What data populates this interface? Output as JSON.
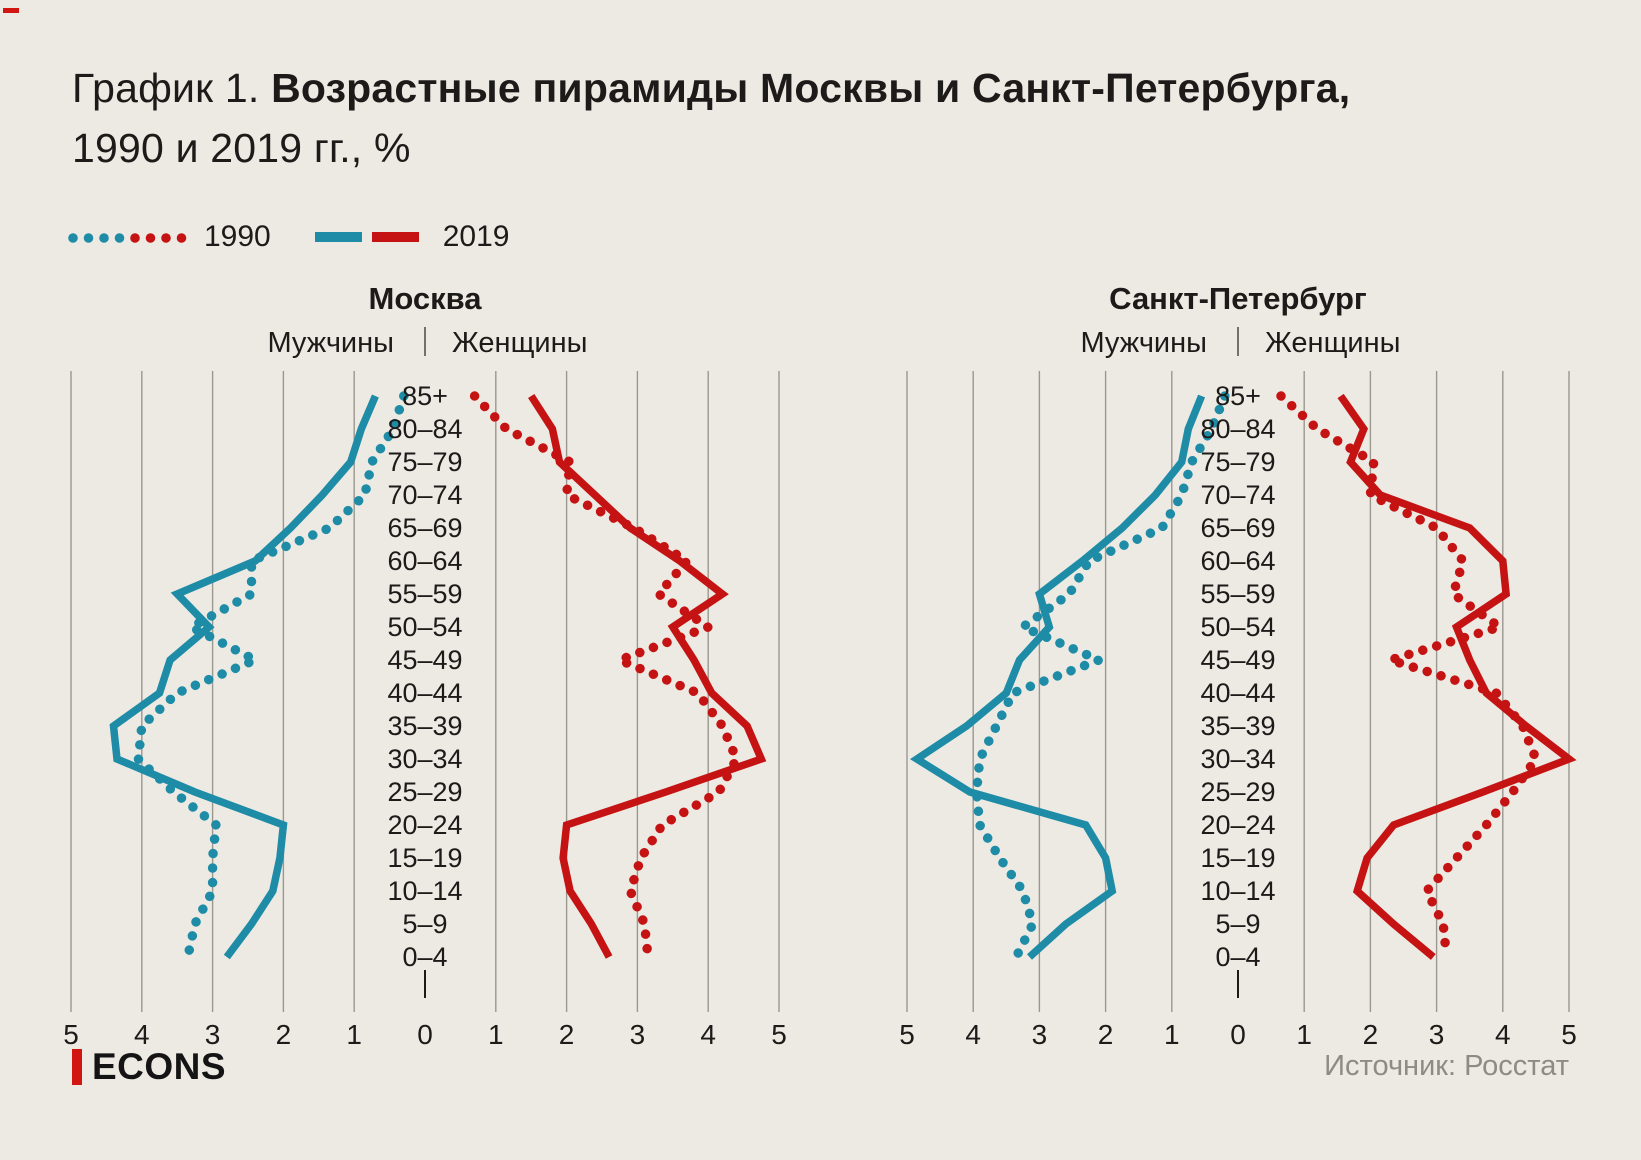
{
  "page": {
    "title_prefix": "График 1. ",
    "title_bold": "Возрастные пирамиды Москвы и Санкт-Петербурга,",
    "title_line2": "1990 и 2019 гг., %",
    "logo_text": "ECONS",
    "source": "Источник: Росстат"
  },
  "legend": {
    "dotted_label": "1990",
    "solid_label": "2019"
  },
  "colors": {
    "bg": "#edeae3",
    "text": "#1c1b19",
    "muted": "#8e8b83",
    "male": "#1e8ca6",
    "female": "#c51313",
    "grid": "#9a978f",
    "logo": "#d11510"
  },
  "chart_data": [
    {
      "type": "line",
      "id": "moscow",
      "title": "Москва",
      "left_header": "Мужчины",
      "right_header": "Женщины",
      "orientation": "population-pyramid",
      "xlim_each_side": [
        0,
        5
      ],
      "x_ticks_left": [
        5,
        4,
        3,
        2,
        1
      ],
      "x_tick_zero": 0,
      "x_ticks_right": [
        1,
        2,
        3,
        4,
        5
      ],
      "grid": true,
      "age_groups": [
        "85+",
        "80–84",
        "75–79",
        "70–74",
        "65–69",
        "60–64",
        "55–59",
        "50–54",
        "45–49",
        "40–44",
        "35–39",
        "30–34",
        "25–29",
        "20–24",
        "15–19",
        "10–14",
        "5–9",
        "0–4"
      ],
      "series": [
        {
          "name": "Мужчины 1990",
          "sex": "male",
          "year": "1990",
          "style": "dotted",
          "values": [
            0.3,
            0.45,
            0.75,
            0.85,
            1.35,
            2.45,
            2.45,
            3.3,
            2.4,
            3.5,
            4.0,
            4.05,
            3.55,
            2.95,
            3.0,
            3.0,
            3.25,
            3.35
          ]
        },
        {
          "name": "Мужчины 2019",
          "sex": "male",
          "year": "2019",
          "style": "solid",
          "values": [
            0.7,
            0.9,
            1.05,
            1.45,
            1.9,
            2.4,
            3.5,
            3.05,
            3.6,
            3.75,
            4.4,
            4.35,
            3.25,
            2.0,
            2.05,
            2.15,
            2.45,
            2.8
          ]
        },
        {
          "name": "Женщины 1990",
          "sex": "female",
          "year": "1990",
          "style": "dotted",
          "values": [
            0.7,
            1.15,
            2.05,
            2.0,
            2.95,
            3.7,
            3.3,
            4.0,
            2.75,
            3.85,
            4.2,
            4.4,
            4.15,
            3.35,
            3.05,
            2.9,
            3.1,
            3.15
          ]
        },
        {
          "name": "Женщины 2019",
          "sex": "female",
          "year": "2019",
          "style": "solid",
          "values": [
            1.5,
            1.8,
            1.9,
            2.4,
            2.9,
            3.6,
            4.2,
            3.5,
            3.8,
            4.05,
            4.55,
            4.75,
            3.4,
            2.0,
            1.95,
            2.05,
            2.35,
            2.6
          ]
        }
      ]
    },
    {
      "type": "line",
      "id": "spb",
      "title": "Санкт-Петербург",
      "left_header": "Мужчины",
      "right_header": "Женщины",
      "orientation": "population-pyramid",
      "xlim_each_side": [
        0,
        5
      ],
      "x_ticks_left": [
        5,
        4,
        3,
        2,
        1
      ],
      "x_tick_zero": 0,
      "x_ticks_right": [
        1,
        2,
        3,
        4,
        5
      ],
      "grid": true,
      "age_groups": [
        "85+",
        "80–84",
        "75–79",
        "70–74",
        "65–69",
        "60–64",
        "55–59",
        "50–54",
        "45–49",
        "40–44",
        "35–39",
        "30–34",
        "25–29",
        "20–24",
        "15–19",
        "10–14",
        "5–9",
        "0–4"
      ],
      "series": [
        {
          "name": "Мужчины 1990",
          "sex": "male",
          "year": "1990",
          "style": "dotted",
          "values": [
            0.2,
            0.4,
            0.7,
            0.85,
            1.15,
            2.25,
            2.55,
            3.25,
            2.1,
            3.4,
            3.65,
            3.9,
            3.95,
            3.9,
            3.6,
            3.25,
            3.1,
            3.35
          ]
        },
        {
          "name": "Мужчины 2019",
          "sex": "male",
          "year": "2019",
          "style": "solid",
          "values": [
            0.55,
            0.75,
            0.85,
            1.25,
            1.75,
            2.35,
            3.0,
            2.85,
            3.3,
            3.5,
            4.1,
            4.85,
            4.05,
            2.3,
            2.0,
            1.9,
            2.6,
            3.15
          ]
        },
        {
          "name": "Женщины 1990",
          "sex": "female",
          "year": "1990",
          "style": "dotted",
          "values": [
            0.65,
            1.2,
            2.05,
            2.0,
            3.0,
            3.4,
            3.25,
            3.95,
            2.3,
            3.9,
            4.3,
            4.5,
            4.15,
            3.75,
            3.3,
            2.85,
            3.1,
            3.15
          ]
        },
        {
          "name": "Женщины 2019",
          "sex": "female",
          "year": "2019",
          "style": "solid",
          "values": [
            1.55,
            1.9,
            1.7,
            2.15,
            3.5,
            4.0,
            4.05,
            3.3,
            3.5,
            3.75,
            4.35,
            5.0,
            3.7,
            2.35,
            1.95,
            1.8,
            2.35,
            2.95
          ]
        }
      ]
    }
  ]
}
